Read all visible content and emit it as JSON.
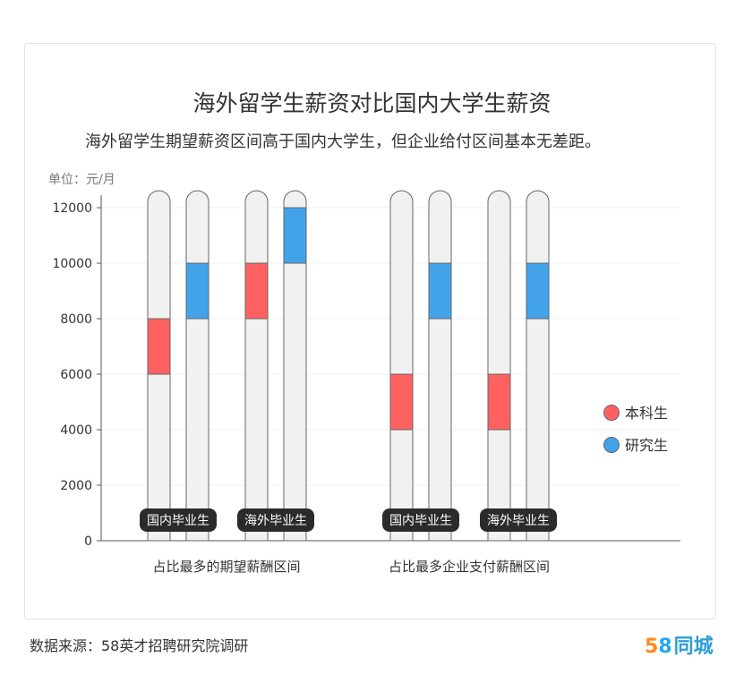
{
  "title": "海外留学生薪资对比国内大学生薪资",
  "subtitle": "海外留学生期望薪资区间高于国内大学生，但企业给付区间基本无差距。",
  "unit_label": "单位：元/月",
  "source": "数据来源：58英才招聘研究院调研",
  "logo": {
    "num5": "5",
    "num8": "8",
    "text": "同城"
  },
  "colors": {
    "undergrad": "#ff6161",
    "grad": "#42a2ea",
    "track": "#f1f1f1",
    "track_stroke": "#666666",
    "badge_bg": "#2b2b2b"
  },
  "chart_data": {
    "type": "range-bar",
    "ylim": [
      0,
      12000
    ],
    "yticks": [
      0,
      2000,
      4000,
      6000,
      8000,
      10000,
      12000
    ],
    "legend": {
      "position": "right",
      "entries": [
        "本科生",
        "研究生"
      ]
    },
    "groups": [
      {
        "label": "占比最多的期望薪酬区间",
        "subgroups": [
          {
            "label": "国内毕业生",
            "bars": [
              {
                "series": "本科生",
                "range": [
                  6000,
                  8000
                ]
              },
              {
                "series": "研究生",
                "range": [
                  8000,
                  10000
                ]
              }
            ]
          },
          {
            "label": "海外毕业生",
            "bars": [
              {
                "series": "本科生",
                "range": [
                  8000,
                  10000
                ]
              },
              {
                "series": "研究生",
                "range": [
                  10000,
                  12000
                ]
              }
            ]
          }
        ]
      },
      {
        "label": "占比最多企业支付薪酬区间",
        "subgroups": [
          {
            "label": "国内毕业生",
            "bars": [
              {
                "series": "本科生",
                "range": [
                  4000,
                  6000
                ]
              },
              {
                "series": "研究生",
                "range": [
                  8000,
                  10000
                ]
              }
            ]
          },
          {
            "label": "海外毕业生",
            "bars": [
              {
                "series": "本科生",
                "range": [
                  4000,
                  6000
                ]
              },
              {
                "series": "研究生",
                "range": [
                  8000,
                  10000
                ]
              }
            ]
          }
        ]
      }
    ]
  }
}
